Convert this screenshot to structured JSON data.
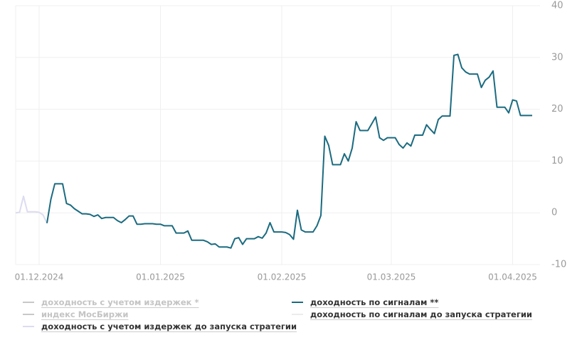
{
  "chart_data": {
    "type": "line",
    "xlim": [
      "2024-11-25",
      "2025-04-08"
    ],
    "xticks": [
      {
        "value": "2024-12-01",
        "label": "01.12.2024"
      },
      {
        "value": "2025-01-01",
        "label": "01.01.2025"
      },
      {
        "value": "2025-02-01",
        "label": "01.02.2025"
      },
      {
        "value": "2025-03-01",
        "label": "01.03.2025"
      },
      {
        "value": "2025-04-01",
        "label": "01.04.2025"
      }
    ],
    "ylim": [
      -10,
      40
    ],
    "yticks": [
      -10,
      0,
      10,
      20,
      30,
      40
    ],
    "grid": true,
    "series": [
      {
        "name": "доходность с учетом издержек *",
        "color": "#c8c8c8",
        "visible": false,
        "x": [],
        "values": []
      },
      {
        "name": "индекс МосБиржи",
        "color": "#c8c8c8",
        "visible": false,
        "x": [],
        "values": []
      },
      {
        "name": "доходность с учетом издержек до запуска стратегии",
        "color": "#dcdcf0",
        "visible": true,
        "x": [
          "2024-11-25",
          "2024-11-26",
          "2024-11-27",
          "2024-11-28",
          "2024-11-29",
          "2024-11-30",
          "2024-12-01",
          "2024-12-02",
          "2024-12-03"
        ],
        "values": [
          0,
          0.1,
          3.2,
          0.2,
          0.2,
          0.2,
          0.1,
          -0.4,
          -2
        ]
      },
      {
        "name": "доходность по сигналам **",
        "color": "#1b6b80",
        "visible": true,
        "x": [
          "2024-12-03",
          "2024-12-04",
          "2024-12-05",
          "2024-12-06",
          "2024-12-07",
          "2024-12-08",
          "2024-12-09",
          "2024-12-10",
          "2024-12-11",
          "2024-12-12",
          "2024-12-13",
          "2024-12-14",
          "2024-12-15",
          "2024-12-16",
          "2024-12-17",
          "2024-12-18",
          "2024-12-19",
          "2024-12-20",
          "2024-12-21",
          "2024-12-22",
          "2024-12-23",
          "2024-12-24",
          "2024-12-25",
          "2024-12-26",
          "2024-12-27",
          "2024-12-28",
          "2024-12-29",
          "2024-12-30",
          "2024-12-31",
          "2025-01-01",
          "2025-01-02",
          "2025-01-03",
          "2025-01-04",
          "2025-01-05",
          "2025-01-06",
          "2025-01-07",
          "2025-01-08",
          "2025-01-09",
          "2025-01-10",
          "2025-01-11",
          "2025-01-12",
          "2025-01-13",
          "2025-01-14",
          "2025-01-15",
          "2025-01-16",
          "2025-01-17",
          "2025-01-18",
          "2025-01-19",
          "2025-01-20",
          "2025-01-21",
          "2025-01-22",
          "2025-01-23",
          "2025-01-24",
          "2025-01-25",
          "2025-01-26",
          "2025-01-27",
          "2025-01-28",
          "2025-01-29",
          "2025-01-30",
          "2025-01-31",
          "2025-02-01",
          "2025-02-02",
          "2025-02-03",
          "2025-02-04",
          "2025-02-05",
          "2025-02-06",
          "2025-02-07",
          "2025-02-08",
          "2025-02-09",
          "2025-02-10",
          "2025-02-11",
          "2025-02-12",
          "2025-02-13",
          "2025-02-14",
          "2025-02-15",
          "2025-02-16",
          "2025-02-17",
          "2025-02-18",
          "2025-02-19",
          "2025-02-20",
          "2025-02-21",
          "2025-02-22",
          "2025-02-23",
          "2025-02-24",
          "2025-02-25",
          "2025-02-26",
          "2025-02-27",
          "2025-02-28",
          "2025-03-01",
          "2025-03-02",
          "2025-03-03",
          "2025-03-04",
          "2025-03-05",
          "2025-03-06",
          "2025-03-07",
          "2025-03-08",
          "2025-03-09",
          "2025-03-10",
          "2025-03-11",
          "2025-03-12",
          "2025-03-13",
          "2025-03-14",
          "2025-03-15",
          "2025-03-16",
          "2025-03-17",
          "2025-03-18",
          "2025-03-19",
          "2025-03-20",
          "2025-03-21",
          "2025-03-22",
          "2025-03-23",
          "2025-03-24",
          "2025-03-25",
          "2025-03-26",
          "2025-03-27",
          "2025-03-28",
          "2025-03-29",
          "2025-03-30",
          "2025-03-31",
          "2025-04-01",
          "2025-04-02",
          "2025-04-03",
          "2025-04-04",
          "2025-04-05",
          "2025-04-06"
        ],
        "values": [
          -2,
          2.6,
          5.6,
          5.6,
          5.6,
          1.8,
          1.5,
          0.8,
          0.3,
          -0.2,
          -0.2,
          -0.3,
          -0.7,
          -0.4,
          -1.1,
          -0.9,
          -0.9,
          -0.9,
          -1.5,
          -1.9,
          -1.3,
          -0.6,
          -0.6,
          -2.2,
          -2.2,
          -2.1,
          -2.1,
          -2.1,
          -2.2,
          -2.2,
          -2.5,
          -2.5,
          -2.5,
          -3.9,
          -3.9,
          -3.9,
          -3.5,
          -5.3,
          -5.3,
          -5.3,
          -5.3,
          -5.6,
          -6.1,
          -6,
          -6.6,
          -6.6,
          -6.6,
          -6.8,
          -5,
          -4.8,
          -6.1,
          -5,
          -5,
          -5,
          -4.6,
          -4.9,
          -3.9,
          -1.9,
          -3.7,
          -3.7,
          -3.7,
          -3.8,
          -4.2,
          -5.1,
          0.5,
          -3.3,
          -3.7,
          -3.7,
          -3.7,
          -2.5,
          -0.5,
          14.8,
          13,
          9.3,
          9.3,
          9.3,
          11.4,
          10,
          12.5,
          17.6,
          15.9,
          15.9,
          15.9,
          17.2,
          18.5,
          14.5,
          14,
          14.5,
          14.5,
          14.5,
          13.2,
          12.5,
          13.5,
          12.9,
          15,
          15,
          15,
          17,
          16.1,
          15.3,
          18,
          18.7,
          18.7,
          18.7,
          30.4,
          30.6,
          28,
          27.2,
          26.8,
          26.8,
          26.8,
          24.2,
          25.6,
          26.2,
          27.4,
          20.4,
          20.4,
          20.4,
          19.3,
          21.8,
          21.6,
          18.8,
          18.8,
          18.8,
          18.8
        ]
      },
      {
        "name": "доходность по сигналам до запуска стратегии",
        "color": "#ececec",
        "visible": true,
        "x": [],
        "values": []
      }
    ]
  }
}
